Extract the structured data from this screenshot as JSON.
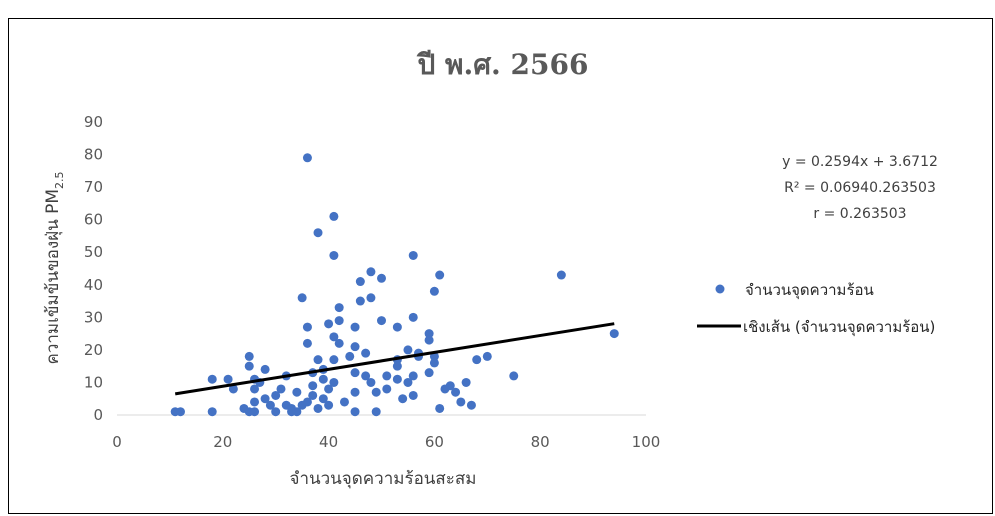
{
  "chart_data": {
    "type": "scatter",
    "title": "ปี พ.ศ. 2566",
    "xlabel": "จำนวนจุดความร้อนสะสม",
    "ylabel_main": "ความเข้มข้นของฝุ่น PM",
    "ylabel_sub": "2.5",
    "xlim": [
      0,
      100
    ],
    "ylim": [
      0,
      90
    ],
    "x_ticks": [
      "0",
      "20",
      "40",
      "60",
      "80",
      "100"
    ],
    "y_ticks": [
      "0",
      "10",
      "20",
      "30",
      "40",
      "50",
      "60",
      "70",
      "80",
      "90"
    ],
    "grid": false,
    "legend_position": "right",
    "series": [
      {
        "name": "จำนวนจุดความร้อน",
        "color": "#4472C4",
        "points": [
          [
            11,
            1
          ],
          [
            12,
            1
          ],
          [
            18,
            1
          ],
          [
            18,
            11
          ],
          [
            21,
            11
          ],
          [
            22,
            8
          ],
          [
            24,
            2
          ],
          [
            25,
            18
          ],
          [
            25,
            15
          ],
          [
            25,
            1
          ],
          [
            26,
            1
          ],
          [
            26,
            4
          ],
          [
            26,
            8
          ],
          [
            26,
            11
          ],
          [
            27,
            10
          ],
          [
            28,
            14
          ],
          [
            28,
            5
          ],
          [
            29,
            3
          ],
          [
            30,
            1
          ],
          [
            30,
            6
          ],
          [
            31,
            8
          ],
          [
            32,
            12
          ],
          [
            32,
            3
          ],
          [
            33,
            2
          ],
          [
            33,
            1
          ],
          [
            34,
            1
          ],
          [
            34,
            7
          ],
          [
            35,
            36
          ],
          [
            35,
            3
          ],
          [
            36,
            79
          ],
          [
            36,
            27
          ],
          [
            36,
            22
          ],
          [
            36,
            4
          ],
          [
            37,
            9
          ],
          [
            37,
            13
          ],
          [
            37,
            6
          ],
          [
            38,
            56
          ],
          [
            38,
            17
          ],
          [
            38,
            2
          ],
          [
            39,
            14
          ],
          [
            39,
            11
          ],
          [
            39,
            5
          ],
          [
            40,
            28
          ],
          [
            40,
            8
          ],
          [
            40,
            3
          ],
          [
            41,
            61
          ],
          [
            41,
            49
          ],
          [
            41,
            24
          ],
          [
            41,
            17
          ],
          [
            41,
            10
          ],
          [
            42,
            33
          ],
          [
            42,
            29
          ],
          [
            42,
            22
          ],
          [
            43,
            4
          ],
          [
            44,
            18
          ],
          [
            45,
            27
          ],
          [
            45,
            21
          ],
          [
            45,
            13
          ],
          [
            45,
            7
          ],
          [
            45,
            1
          ],
          [
            46,
            41
          ],
          [
            46,
            35
          ],
          [
            47,
            19
          ],
          [
            47,
            12
          ],
          [
            48,
            44
          ],
          [
            48,
            36
          ],
          [
            48,
            10
          ],
          [
            49,
            1
          ],
          [
            49,
            7
          ],
          [
            50,
            42
          ],
          [
            50,
            29
          ],
          [
            51,
            12
          ],
          [
            51,
            8
          ],
          [
            53,
            27
          ],
          [
            53,
            17
          ],
          [
            53,
            15
          ],
          [
            53,
            11
          ],
          [
            54,
            5
          ],
          [
            55,
            10
          ],
          [
            55,
            20
          ],
          [
            56,
            49
          ],
          [
            56,
            30
          ],
          [
            56,
            12
          ],
          [
            56,
            6
          ],
          [
            57,
            19
          ],
          [
            57,
            18
          ],
          [
            59,
            25
          ],
          [
            59,
            23
          ],
          [
            59,
            13
          ],
          [
            60,
            38
          ],
          [
            60,
            18
          ],
          [
            60,
            16
          ],
          [
            61,
            43
          ],
          [
            61,
            2
          ],
          [
            62,
            8
          ],
          [
            63,
            9
          ],
          [
            64,
            7
          ],
          [
            65,
            4
          ],
          [
            66,
            10
          ],
          [
            67,
            3
          ],
          [
            68,
            17
          ],
          [
            70,
            18
          ],
          [
            75,
            12
          ],
          [
            84,
            43
          ],
          [
            94,
            25
          ]
        ]
      },
      {
        "name": "เชิงเส้น (จำนวนจุดความร้อน)",
        "color": "#000000",
        "type": "line",
        "x": [
          11,
          94
        ],
        "y": [
          6.5,
          28.05
        ]
      }
    ],
    "annotations": [
      "y = 0.2594x + 3.6712",
      "R² = 0.06940.263503",
      "r = 0.263503"
    ]
  }
}
